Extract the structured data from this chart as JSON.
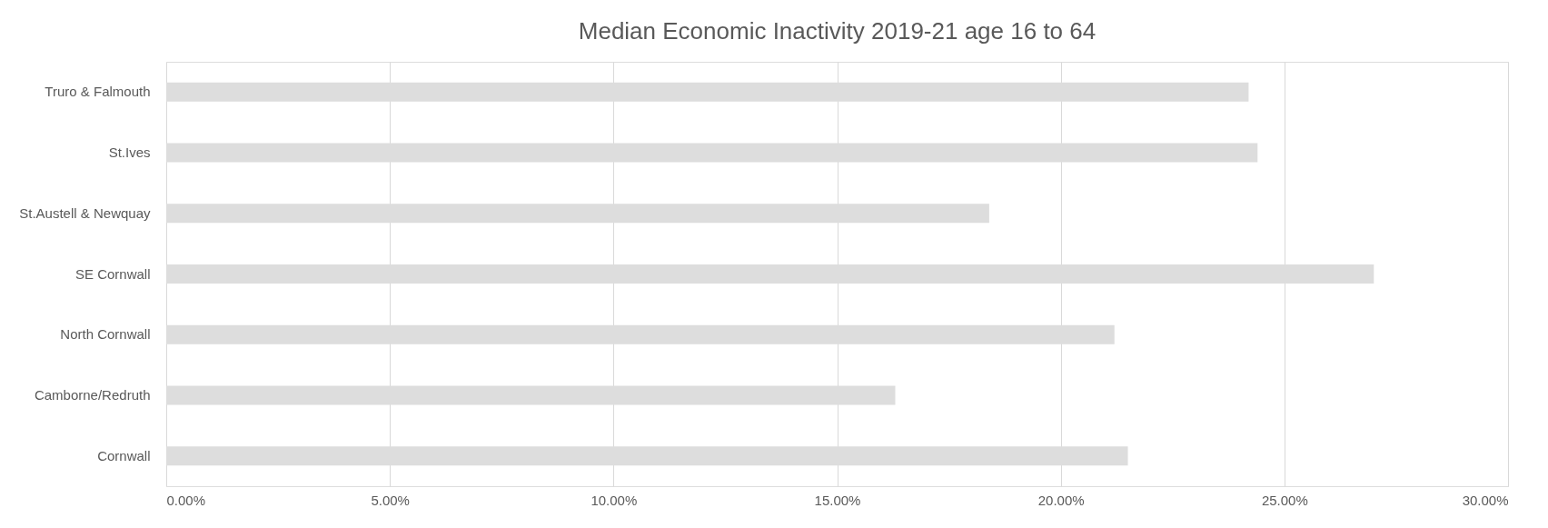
{
  "chart_data": {
    "type": "bar",
    "orientation": "horizontal",
    "title": "Median Economic Inactivity 2019-21 age 16 to 64",
    "categories": [
      "Truro & Falmouth",
      "St.Ives",
      "St.Austell & Newquay",
      "SE Cornwall",
      "North Cornwall",
      "Camborne/Redruth",
      "Cornwall"
    ],
    "values": [
      24.2,
      24.4,
      18.4,
      27.0,
      21.2,
      16.3,
      21.5
    ],
    "color": "#dddddd",
    "xlim": [
      0,
      30
    ],
    "xticks": [
      {
        "value": 0,
        "label": "0.00%"
      },
      {
        "value": 5,
        "label": "5.00%"
      },
      {
        "value": 10,
        "label": "10.00%"
      },
      {
        "value": 15,
        "label": "15.00%"
      },
      {
        "value": 20,
        "label": "20.00%"
      },
      {
        "value": 25,
        "label": "25.00%"
      },
      {
        "value": 30,
        "label": "30.00%"
      }
    ],
    "grid": "x"
  }
}
